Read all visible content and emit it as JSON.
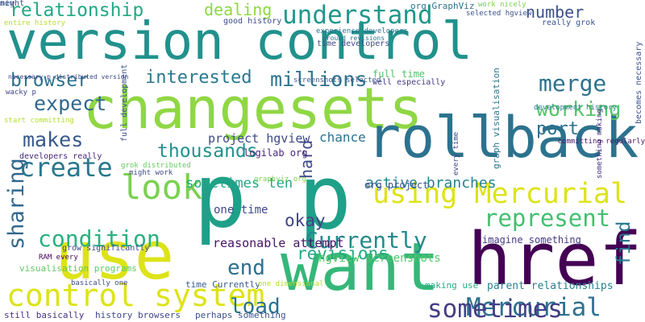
{
  "words": [
    {
      "text": "changesets",
      "color": "#8fd744"
    },
    {
      "text": "version control",
      "color": "#21918c"
    },
    {
      "text": "p",
      "color": "#1fa088"
    },
    {
      "text": "p",
      "color": "#1fa088"
    },
    {
      "text": "rollback",
      "color": "#2c728e"
    },
    {
      "text": "use",
      "color": "#dde318"
    },
    {
      "text": "want",
      "color": "#35b779"
    },
    {
      "text": "href",
      "color": "#440154"
    },
    {
      "text": "control system",
      "color": "#dde318"
    },
    {
      "text": "using Mercurial",
      "color": "#dde318"
    },
    {
      "text": "Mercurial",
      "color": "#2c728e"
    },
    {
      "text": "understand",
      "color": "#1f988b"
    },
    {
      "text": "relationship",
      "color": "#22a884"
    },
    {
      "text": "condition",
      "color": "#2ab07f"
    },
    {
      "text": "create",
      "color": "#29788e"
    },
    {
      "text": "look",
      "color": "#7ad151"
    },
    {
      "text": "merge",
      "color": "#2c728e"
    },
    {
      "text": "thousands",
      "color": "#21918c"
    },
    {
      "text": "millions",
      "color": "#2c728e"
    },
    {
      "text": "interested",
      "color": "#2a788e"
    },
    {
      "text": "browser",
      "color": "#2c728e"
    },
    {
      "text": "expect",
      "color": "#31688e"
    },
    {
      "text": "makes",
      "color": "#38588c"
    },
    {
      "text": "working",
      "color": "#54c568"
    },
    {
      "text": "port",
      "color": "#2d708e"
    },
    {
      "text": "number",
      "color": "#3b528b"
    },
    {
      "text": "dealing",
      "color": "#8fd744"
    },
    {
      "text": "represent",
      "color": "#44bf70"
    },
    {
      "text": "Currently",
      "color": "#238a8d"
    },
    {
      "text": "active branches",
      "color": "#26828e"
    },
    {
      "text": "okay",
      "color": "#414487"
    },
    {
      "text": "sometimes ten",
      "color": "#21a685"
    },
    {
      "text": "sharing",
      "color": "#31688e"
    },
    {
      "text": "revisions",
      "color": "#22a884"
    },
    {
      "text": "end",
      "color": "#2e6e8e"
    },
    {
      "text": "hard",
      "color": "#3e4a89"
    },
    {
      "text": "load",
      "color": "#2c728e"
    },
    {
      "text": "sometimes",
      "color": "#433e85"
    },
    {
      "text": "find",
      "color": "#2a788e"
    },
    {
      "text": "chance",
      "color": "#2c728e"
    },
    {
      "text": "project hgview",
      "color": "#3e4989"
    },
    {
      "text": "logilab org",
      "color": "#482878"
    },
    {
      "text": "reasonable attempt",
      "color": "#471365"
    },
    {
      "text": "one time",
      "color": "#3f4889"
    },
    {
      "text": "hgview screenshots",
      "color": "#52c569"
    },
    {
      "text": "org project",
      "color": "#3b518b"
    },
    {
      "text": "imagine something",
      "color": "#443a83"
    },
    {
      "text": "making use",
      "color": "#27ad81"
    },
    {
      "text": "parent relationships",
      "color": "#26828e"
    },
    {
      "text": "time Currently",
      "color": "#38598c"
    },
    {
      "text": "basically one",
      "color": "#3e4c8a"
    },
    {
      "text": "still basically",
      "color": "#46337e"
    },
    {
      "text": "history browsers",
      "color": "#3f4788"
    },
    {
      "text": "perhaps something",
      "color": "#3a538b"
    },
    {
      "text": "one dimensional",
      "color": "#b5de2b"
    },
    {
      "text": "grow significantly",
      "color": "#3f4889"
    },
    {
      "text": "RAM every",
      "color": "#440154"
    },
    {
      "text": "visualisation programs",
      "color": "#5ec962"
    },
    {
      "text": "grok distributed",
      "color": "#63cb5f"
    },
    {
      "text": "might work",
      "color": "#3e4a89"
    },
    {
      "text": "developers really",
      "color": "#482878"
    },
    {
      "text": "full development",
      "color": "#3b528b"
    },
    {
      "text": "graphviz org",
      "color": "#7ad151"
    },
    {
      "text": "graph visualisation",
      "color": "#2a788e"
    },
    {
      "text": "every time",
      "color": "#3f4788"
    },
    {
      "text": "something making",
      "color": "#46327e"
    },
    {
      "text": "becomes necessary",
      "color": "#3b528b"
    },
    {
      "text": "committing regularly",
      "color": "#48186a"
    },
    {
      "text": "development history",
      "color": "#2a788e"
    },
    {
      "text": "full time",
      "color": "#54c568"
    },
    {
      "text": "well especially",
      "color": "#443983"
    },
    {
      "text": "screenshots selected",
      "color": "#38598c"
    },
    {
      "text": "time developers",
      "color": "#3e4a89"
    },
    {
      "text": "good history",
      "color": "#3e4c8a"
    },
    {
      "text": "really grok",
      "color": "#3b528b"
    },
    {
      "text": "work nicely",
      "color": "#7ad151"
    },
    {
      "text": "selected hgview",
      "color": "#3b528b"
    },
    {
      "text": "org GraphViz",
      "color": "#2c728e"
    },
    {
      "text": "entire history",
      "color": "#b5de2b"
    },
    {
      "text": "wacky p",
      "color": "#3e4989"
    },
    {
      "text": "necessary p distributed version",
      "color": "#3e4989"
    },
    {
      "text": "start committing",
      "color": "#b5de2b"
    },
    {
      "text": "experience developers",
      "color": "#2c728e"
    },
    {
      "text": "around revisions",
      "color": "#2c728e"
    },
    {
      "text": "new",
      "color": "#3b528b"
    },
    {
      "text": "might",
      "color": "#3b528b"
    }
  ]
}
